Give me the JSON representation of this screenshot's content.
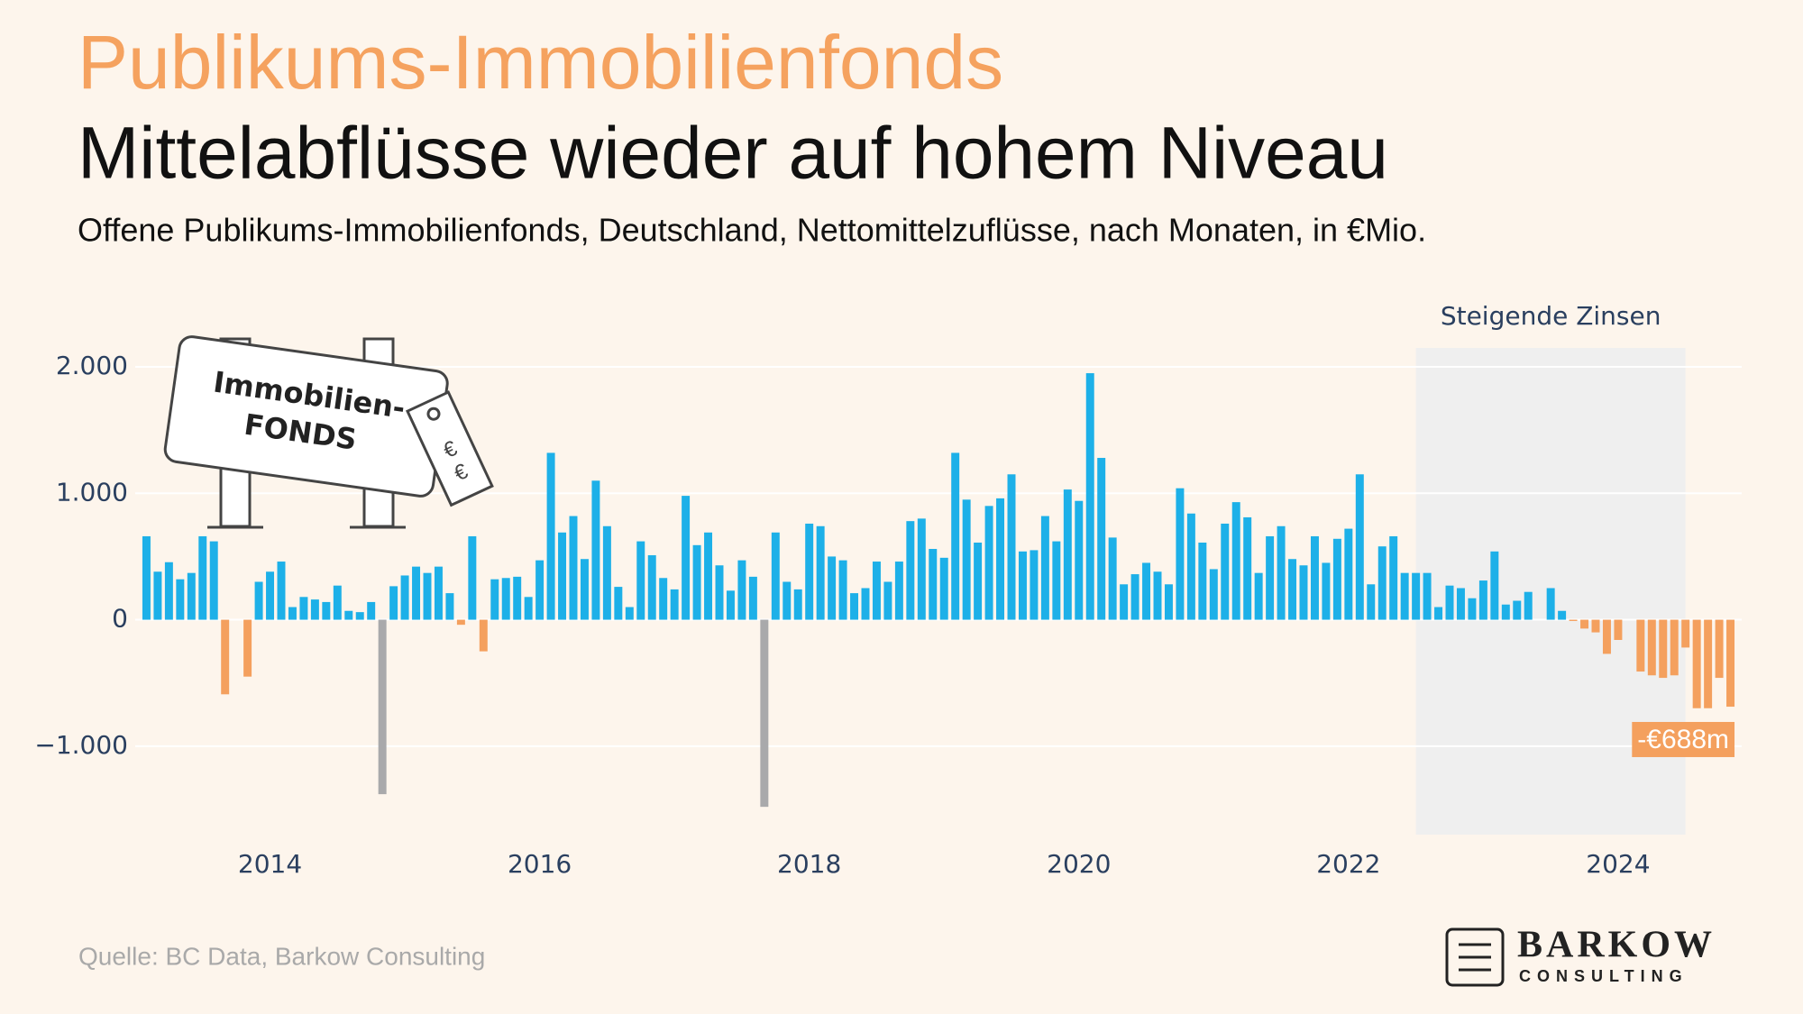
{
  "chart_data": {
    "type": "bar",
    "title": "Publikums-Immobilienfonds",
    "subtitle": "Mittelabflüsse wieder auf hohem Niveau",
    "description": "Offene Publikums-Immobilienfonds, Deutschland, Nettomittelzuflüsse, nach Monaten, in €Mio.",
    "source": "Quelle: BC Data, Barkow Consulting",
    "x": [
      "2013-02",
      "2013-03",
      "2013-04",
      "2013-05",
      "2013-06",
      "2013-07",
      "2013-08",
      "2013-09",
      "2013-10",
      "2013-11",
      "2013-12",
      "2014-01",
      "2014-02",
      "2014-03",
      "2014-04",
      "2014-05",
      "2014-06",
      "2014-07",
      "2014-08",
      "2014-09",
      "2014-10",
      "2014-11",
      "2014-12",
      "2015-01",
      "2015-02",
      "2015-03",
      "2015-04",
      "2015-05",
      "2015-06",
      "2015-07",
      "2015-08",
      "2015-09",
      "2015-10",
      "2015-11",
      "2015-12",
      "2016-01",
      "2016-02",
      "2016-03",
      "2016-04",
      "2016-05",
      "2016-06",
      "2016-07",
      "2016-08",
      "2016-09",
      "2016-10",
      "2016-11",
      "2016-12",
      "2017-01",
      "2017-02",
      "2017-03",
      "2017-04",
      "2017-05",
      "2017-06",
      "2017-07",
      "2017-08",
      "2017-09",
      "2017-10",
      "2017-11",
      "2017-12",
      "2018-01",
      "2018-02",
      "2018-03",
      "2018-04",
      "2018-05",
      "2018-06",
      "2018-07",
      "2018-08",
      "2018-09",
      "2018-10",
      "2018-11",
      "2018-12",
      "2019-01",
      "2019-02",
      "2019-03",
      "2019-04",
      "2019-05",
      "2019-06",
      "2019-07",
      "2019-08",
      "2019-09",
      "2019-10",
      "2019-11",
      "2019-12",
      "2020-01",
      "2020-02",
      "2020-03",
      "2020-04",
      "2020-05",
      "2020-06",
      "2020-07",
      "2020-08",
      "2020-09",
      "2020-10",
      "2020-11",
      "2020-12",
      "2021-01",
      "2021-02",
      "2021-03",
      "2021-04",
      "2021-05",
      "2021-06",
      "2021-07",
      "2021-08",
      "2021-09",
      "2021-10",
      "2021-11",
      "2021-12",
      "2022-01",
      "2022-02",
      "2022-03",
      "2022-04",
      "2022-05",
      "2022-06",
      "2022-07",
      "2022-08",
      "2022-09",
      "2022-10",
      "2022-11",
      "2022-12",
      "2023-01",
      "2023-02",
      "2023-03",
      "2023-04",
      "2023-05",
      "2023-06",
      "2023-07",
      "2023-08",
      "2023-09",
      "2023-10",
      "2023-11",
      "2023-12",
      "2024-01",
      "2024-02",
      "2024-03",
      "2024-04",
      "2024-05",
      "2024-06",
      "2024-07",
      "2024-08",
      "2024-09",
      "2024-10",
      "2024-11"
    ],
    "series": [
      {
        "values": [
          660,
          380,
          455,
          320,
          370,
          660,
          620,
          -590,
          0,
          -450,
          300,
          380,
          460,
          100,
          180,
          160,
          140,
          270,
          70,
          60,
          140,
          -1380,
          265,
          350,
          420,
          370,
          420,
          210,
          -40,
          660,
          -250,
          320,
          330,
          340,
          180,
          470,
          1320,
          690,
          820,
          480,
          1100,
          740,
          260,
          100,
          620,
          510,
          330,
          240,
          980,
          590,
          690,
          430,
          230,
          470,
          340,
          -1480,
          690,
          300,
          240,
          760,
          740,
          500,
          470,
          210,
          250,
          460,
          300,
          460,
          780,
          800,
          560,
          490,
          1320,
          950,
          610,
          900,
          960,
          1150,
          540,
          550,
          820,
          620,
          1030,
          940,
          1950,
          1280,
          650,
          280,
          360,
          450,
          380,
          280,
          1040,
          840,
          610,
          400,
          760,
          930,
          810,
          370,
          660,
          740,
          480,
          430,
          660,
          450,
          640,
          720,
          1150,
          280,
          580,
          660,
          370,
          370,
          370,
          100,
          270,
          250,
          170,
          310,
          540,
          120,
          150,
          220,
          0,
          250,
          70,
          -10,
          -70,
          -100,
          -270,
          -160,
          0,
          -410,
          -440,
          -460,
          -440,
          -220,
          -700,
          -700,
          -460,
          -688
        ],
        "colors": [
          "#1db0e8",
          "#1db0e8",
          "#1db0e8",
          "#1db0e8",
          "#1db0e8",
          "#1db0e8",
          "#1db0e8",
          "#f4a05e",
          "#f4a05e",
          "#f4a05e",
          "#1db0e8",
          "#1db0e8",
          "#1db0e8",
          "#1db0e8",
          "#1db0e8",
          "#1db0e8",
          "#1db0e8",
          "#1db0e8",
          "#1db0e8",
          "#1db0e8",
          "#1db0e8",
          "#a9a9ab",
          "#1db0e8",
          "#1db0e8",
          "#1db0e8",
          "#1db0e8",
          "#1db0e8",
          "#1db0e8",
          "#f4a05e",
          "#1db0e8",
          "#f4a05e",
          "#1db0e8",
          "#1db0e8",
          "#1db0e8",
          "#1db0e8",
          "#1db0e8",
          "#1db0e8",
          "#1db0e8",
          "#1db0e8",
          "#1db0e8",
          "#1db0e8",
          "#1db0e8",
          "#1db0e8",
          "#1db0e8",
          "#1db0e8",
          "#1db0e8",
          "#1db0e8",
          "#1db0e8",
          "#1db0e8",
          "#1db0e8",
          "#1db0e8",
          "#1db0e8",
          "#1db0e8",
          "#1db0e8",
          "#1db0e8",
          "#a9a9ab",
          "#1db0e8",
          "#1db0e8",
          "#1db0e8",
          "#1db0e8",
          "#1db0e8",
          "#1db0e8",
          "#1db0e8",
          "#1db0e8",
          "#1db0e8",
          "#1db0e8",
          "#1db0e8",
          "#1db0e8",
          "#1db0e8",
          "#1db0e8",
          "#1db0e8",
          "#1db0e8",
          "#1db0e8",
          "#1db0e8",
          "#1db0e8",
          "#1db0e8",
          "#1db0e8",
          "#1db0e8",
          "#1db0e8",
          "#1db0e8",
          "#1db0e8",
          "#1db0e8",
          "#1db0e8",
          "#1db0e8",
          "#1db0e8",
          "#1db0e8",
          "#1db0e8",
          "#1db0e8",
          "#1db0e8",
          "#1db0e8",
          "#1db0e8",
          "#1db0e8",
          "#1db0e8",
          "#1db0e8",
          "#1db0e8",
          "#1db0e8",
          "#1db0e8",
          "#1db0e8",
          "#1db0e8",
          "#1db0e8",
          "#1db0e8",
          "#1db0e8",
          "#1db0e8",
          "#1db0e8",
          "#1db0e8",
          "#1db0e8",
          "#1db0e8",
          "#1db0e8",
          "#1db0e8",
          "#1db0e8",
          "#1db0e8",
          "#1db0e8",
          "#1db0e8",
          "#1db0e8",
          "#1db0e8",
          "#1db0e8",
          "#1db0e8",
          "#1db0e8",
          "#1db0e8",
          "#1db0e8",
          "#1db0e8",
          "#1db0e8",
          "#1db0e8",
          "#1db0e8",
          "#1db0e8",
          "#1db0e8",
          "#1db0e8",
          "#f4a05e",
          "#f4a05e",
          "#f4a05e",
          "#f4a05e",
          "#f4a05e",
          "#f4a05e",
          "#f4a05e",
          "#f4a05e",
          "#f4a05e",
          "#f4a05e",
          "#f4a05e",
          "#f4a05e",
          "#f4a05e",
          "#f4a05e",
          "#f4a05e"
        ]
      }
    ],
    "xlim": [
      "2013-01",
      "2024-12"
    ],
    "xticks": [
      "2014",
      "2016",
      "2018",
      "2020",
      "2022",
      "2024"
    ],
    "ylim": [
      -1700,
      2150
    ],
    "yticks": [
      {
        "value": -1000,
        "label": "−1.000"
      },
      0,
      {
        "value": 1000,
        "label": "1.000"
      },
      {
        "value": 2000,
        "label": "2.000"
      }
    ],
    "grid": true,
    "shade": {
      "x0": "2022-07",
      "x1": "2024-07",
      "label": "Steigende Zinsen",
      "color": "#efefef"
    },
    "annotations": [
      {
        "x": "2024-11",
        "text": "-€688m",
        "color": "#f4a05e"
      }
    ],
    "illustration": {
      "line1": "Immobilien-",
      "line2": "FONDS"
    },
    "logo": {
      "name": "BARKOW",
      "tagline": "CONSULTING"
    }
  }
}
